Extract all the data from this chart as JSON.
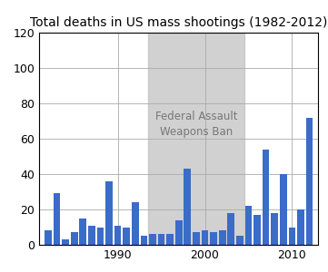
{
  "title": "Total deaths in US mass shootings (1982-2012)",
  "years": [
    1982,
    1983,
    1984,
    1985,
    1986,
    1987,
    1988,
    1989,
    1990,
    1991,
    1992,
    1993,
    1994,
    1995,
    1996,
    1997,
    1998,
    1999,
    2000,
    2001,
    2002,
    2003,
    2004,
    2005,
    2006,
    2007,
    2008,
    2009,
    2010,
    2011,
    2012
  ],
  "deaths": [
    8,
    29,
    3,
    7,
    15,
    11,
    10,
    36,
    11,
    10,
    24,
    5,
    6,
    6,
    6,
    14,
    43,
    7,
    8,
    7,
    8,
    18,
    5,
    22,
    17,
    54,
    18,
    40,
    10,
    20,
    72
  ],
  "bar_color": "#3A6CC8",
  "ban_start": 1994,
  "ban_end": 2004,
  "ban_color": "#BEBEBE",
  "ban_alpha": 0.7,
  "ban_label": "Federal Assault\nWeapons Ban",
  "ylim": [
    0,
    120
  ],
  "yticks": [
    0,
    20,
    40,
    60,
    80,
    100,
    120
  ],
  "xticks": [
    1990,
    2000,
    2010
  ],
  "grid_color": "#AAAAAA",
  "bg_color": "#FFFFFF",
  "title_fontsize": 10
}
